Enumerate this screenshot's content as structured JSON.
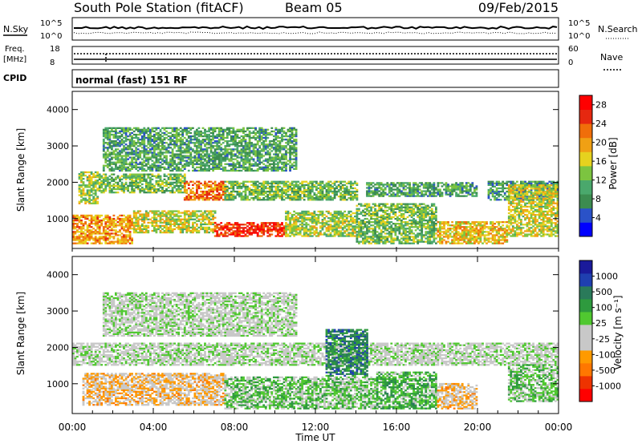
{
  "header": {
    "station": "South Pole Station (fitACF)",
    "beam": "Beam 05",
    "date": "09/Feb/2015"
  },
  "params": {
    "nsky_label": "N.Sky",
    "nsearch_label": "N.Search",
    "noise_ticks": [
      "10^5",
      "10^0"
    ],
    "freq_label_1": "Freq.",
    "freq_label_2": "[MHz]",
    "freq_ticks": [
      "18",
      "8"
    ],
    "nave_label": "Nave",
    "nave_ticks": [
      "60",
      "0"
    ],
    "cpid_label": "CPID",
    "cpid_value": "normal (fast) 151 RF"
  },
  "chart_data": [
    {
      "type": "heatmap",
      "name": "power",
      "ylabel": "Slant Range [km]",
      "xlabel": "Time UT",
      "xlim": [
        0,
        24
      ],
      "ylim": [
        180,
        4500
      ],
      "y_ticks": [
        1000,
        2000,
        3000,
        4000
      ],
      "colorbar": {
        "label": "Power [dB]",
        "range": [
          0,
          30
        ],
        "ticks": [
          4,
          8,
          12,
          16,
          20,
          24,
          28
        ],
        "colors": [
          "#0000ff",
          "#2a52c8",
          "#3c8c50",
          "#4aa86c",
          "#7cc440",
          "#e6d21e",
          "#f0a014",
          "#f06e0a",
          "#e62810",
          "#ff0000"
        ]
      },
      "echo_bands": [
        {
          "t_start": 0.3,
          "t_end": 1.3,
          "range_low": 1400,
          "range_high": 2300,
          "power_db": 14
        },
        {
          "t_start": 1.3,
          "t_end": 5.5,
          "range_low": 1700,
          "range_high": 2200,
          "power_db": 12
        },
        {
          "t_start": 5.5,
          "t_end": 7.5,
          "range_low": 1500,
          "range_high": 2000,
          "power_db": 22
        },
        {
          "t_start": 7.5,
          "t_end": 14.0,
          "range_low": 1500,
          "range_high": 2000,
          "power_db": 12
        },
        {
          "t_start": 14.5,
          "t_end": 20.0,
          "range_low": 1600,
          "range_high": 2000,
          "power_db": 10
        },
        {
          "t_start": 20.5,
          "t_end": 24.0,
          "range_low": 1500,
          "range_high": 2000,
          "power_db": 9
        },
        {
          "t_start": 0.0,
          "t_end": 3.0,
          "range_low": 300,
          "range_high": 1100,
          "power_db": 20
        },
        {
          "t_start": 3.0,
          "t_end": 7.0,
          "range_low": 600,
          "range_high": 1200,
          "power_db": 16
        },
        {
          "t_start": 7.0,
          "t_end": 10.5,
          "range_low": 500,
          "range_high": 900,
          "power_db": 26
        },
        {
          "t_start": 10.5,
          "t_end": 14.0,
          "range_low": 500,
          "range_high": 1200,
          "power_db": 14
        },
        {
          "t_start": 14.0,
          "t_end": 18.0,
          "range_low": 300,
          "range_high": 1400,
          "power_db": 12
        },
        {
          "t_start": 18.0,
          "t_end": 21.5,
          "range_low": 300,
          "range_high": 900,
          "power_db": 18
        },
        {
          "t_start": 21.5,
          "t_end": 24.0,
          "range_low": 500,
          "range_high": 1900,
          "power_db": 16
        },
        {
          "t_start": 1.5,
          "t_end": 11.0,
          "range_low": 2300,
          "range_high": 3500,
          "power_db": 10
        }
      ]
    },
    {
      "type": "heatmap",
      "name": "velocity",
      "ylabel": "Slant Range [km]",
      "xlabel": "Time UT",
      "xlim": [
        0,
        24
      ],
      "ylim": [
        180,
        4500
      ],
      "y_ticks": [
        1000,
        2000,
        3000,
        4000
      ],
      "x_tick_labels": [
        "00:00",
        "04:00",
        "08:00",
        "12:00",
        "16:00",
        "20:00",
        "00:00"
      ],
      "colorbar": {
        "label": "Velocity [m s⁻¹]",
        "range": [
          -1200,
          1200
        ],
        "ticks": [
          1000,
          500,
          100,
          25,
          -25,
          -100,
          -500,
          -1000
        ],
        "colors": [
          "#ff0000",
          "#ee3300",
          "#ff7700",
          "#ff9a00",
          "#c8c8c8",
          "#c8c8c8",
          "#50c830",
          "#2e9a3e",
          "#2a7a5a",
          "#1f3fb0",
          "#1a1a9a"
        ]
      },
      "echo_bands": [
        {
          "t_start": 0.0,
          "t_end": 24.0,
          "range_low": 1500,
          "range_high": 2100,
          "velocity": 0
        },
        {
          "t_start": 1.5,
          "t_end": 11.0,
          "range_low": 2300,
          "range_high": 3500,
          "velocity": 0
        },
        {
          "t_start": 0.5,
          "t_end": 7.5,
          "range_low": 400,
          "range_high": 1300,
          "velocity": -300
        },
        {
          "t_start": 7.5,
          "t_end": 15.0,
          "range_low": 300,
          "range_high": 1200,
          "velocity": 200
        },
        {
          "t_start": 12.5,
          "t_end": 14.5,
          "range_low": 1200,
          "range_high": 2500,
          "velocity": 600
        },
        {
          "t_start": 15.0,
          "t_end": 18.0,
          "range_low": 300,
          "range_high": 1300,
          "velocity": 300
        },
        {
          "t_start": 18.0,
          "t_end": 20.0,
          "range_low": 300,
          "range_high": 1000,
          "velocity": -300
        },
        {
          "t_start": 21.5,
          "t_end": 24.0,
          "range_low": 500,
          "range_high": 1500,
          "velocity": 200
        }
      ]
    }
  ]
}
